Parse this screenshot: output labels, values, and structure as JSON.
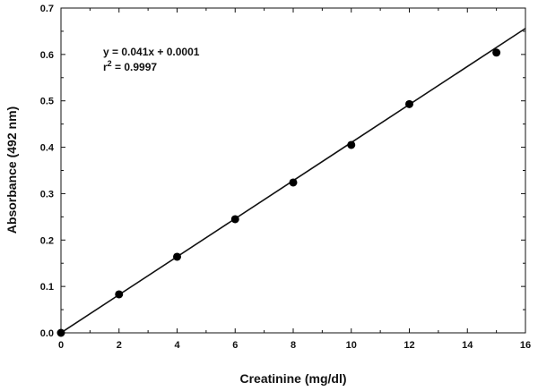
{
  "chart_data": {
    "type": "scatter",
    "xlabel": "Creatinine (mg/dl)",
    "ylabel": "Absorbance (492 nm)",
    "xlim": [
      0,
      16
    ],
    "ylim": [
      0,
      0.7
    ],
    "xticks": [
      "0",
      "2",
      "4",
      "6",
      "8",
      "10",
      "12",
      "14",
      "16"
    ],
    "yticks": [
      "0.0",
      "0.1",
      "0.2",
      "0.3",
      "0.4",
      "0.5",
      "0.6",
      "0.7"
    ],
    "grid": false,
    "points": [
      {
        "x": 0,
        "y": 0.0
      },
      {
        "x": 2,
        "y": 0.083
      },
      {
        "x": 4,
        "y": 0.164
      },
      {
        "x": 6,
        "y": 0.245
      },
      {
        "x": 8,
        "y": 0.324
      },
      {
        "x": 10,
        "y": 0.405
      },
      {
        "x": 12,
        "y": 0.493
      },
      {
        "x": 15,
        "y": 0.604
      }
    ],
    "trendline": {
      "slope": 0.041,
      "intercept": 0.0001,
      "x_range": [
        0,
        16
      ]
    },
    "annotations": {
      "equation": "y = 0.041x + 0.0001",
      "r2_prefix": "r",
      "r2_sup": "2",
      "r2_value": " = 0.9997"
    }
  }
}
